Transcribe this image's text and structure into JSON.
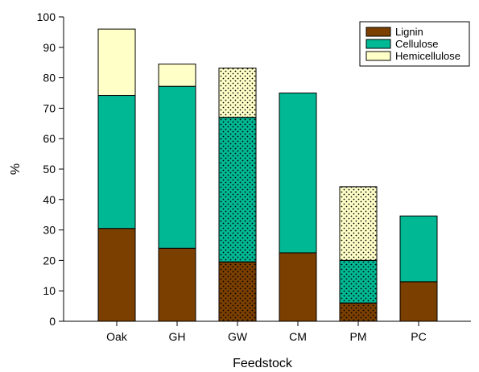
{
  "chart_data": {
    "type": "bar",
    "stacked": true,
    "categories": [
      "Oak",
      "GH",
      "GW",
      "CM",
      "PM",
      "PC"
    ],
    "series": [
      {
        "name": "Lignin",
        "values": [
          30.5,
          24.0,
          19.5,
          22.5,
          6.0,
          13.0
        ],
        "color": "#7b3f00"
      },
      {
        "name": "Cellulose",
        "values": [
          43.7,
          53.2,
          47.5,
          52.5,
          14.0,
          21.6
        ],
        "color": "#00b894"
      },
      {
        "name": "Hemicellulose",
        "values": [
          21.8,
          7.3,
          16.2,
          0,
          24.2,
          0
        ],
        "color": "#ffffc8"
      }
    ],
    "dotted_categories": [
      "GW",
      "PM"
    ],
    "xlabel": "Feedstock",
    "ylabel": "%",
    "ylim": [
      0,
      100
    ],
    "yticks": [
      0,
      10,
      20,
      30,
      40,
      50,
      60,
      70,
      80,
      90,
      100
    ],
    "grid": false,
    "legend_position": "top-right"
  }
}
